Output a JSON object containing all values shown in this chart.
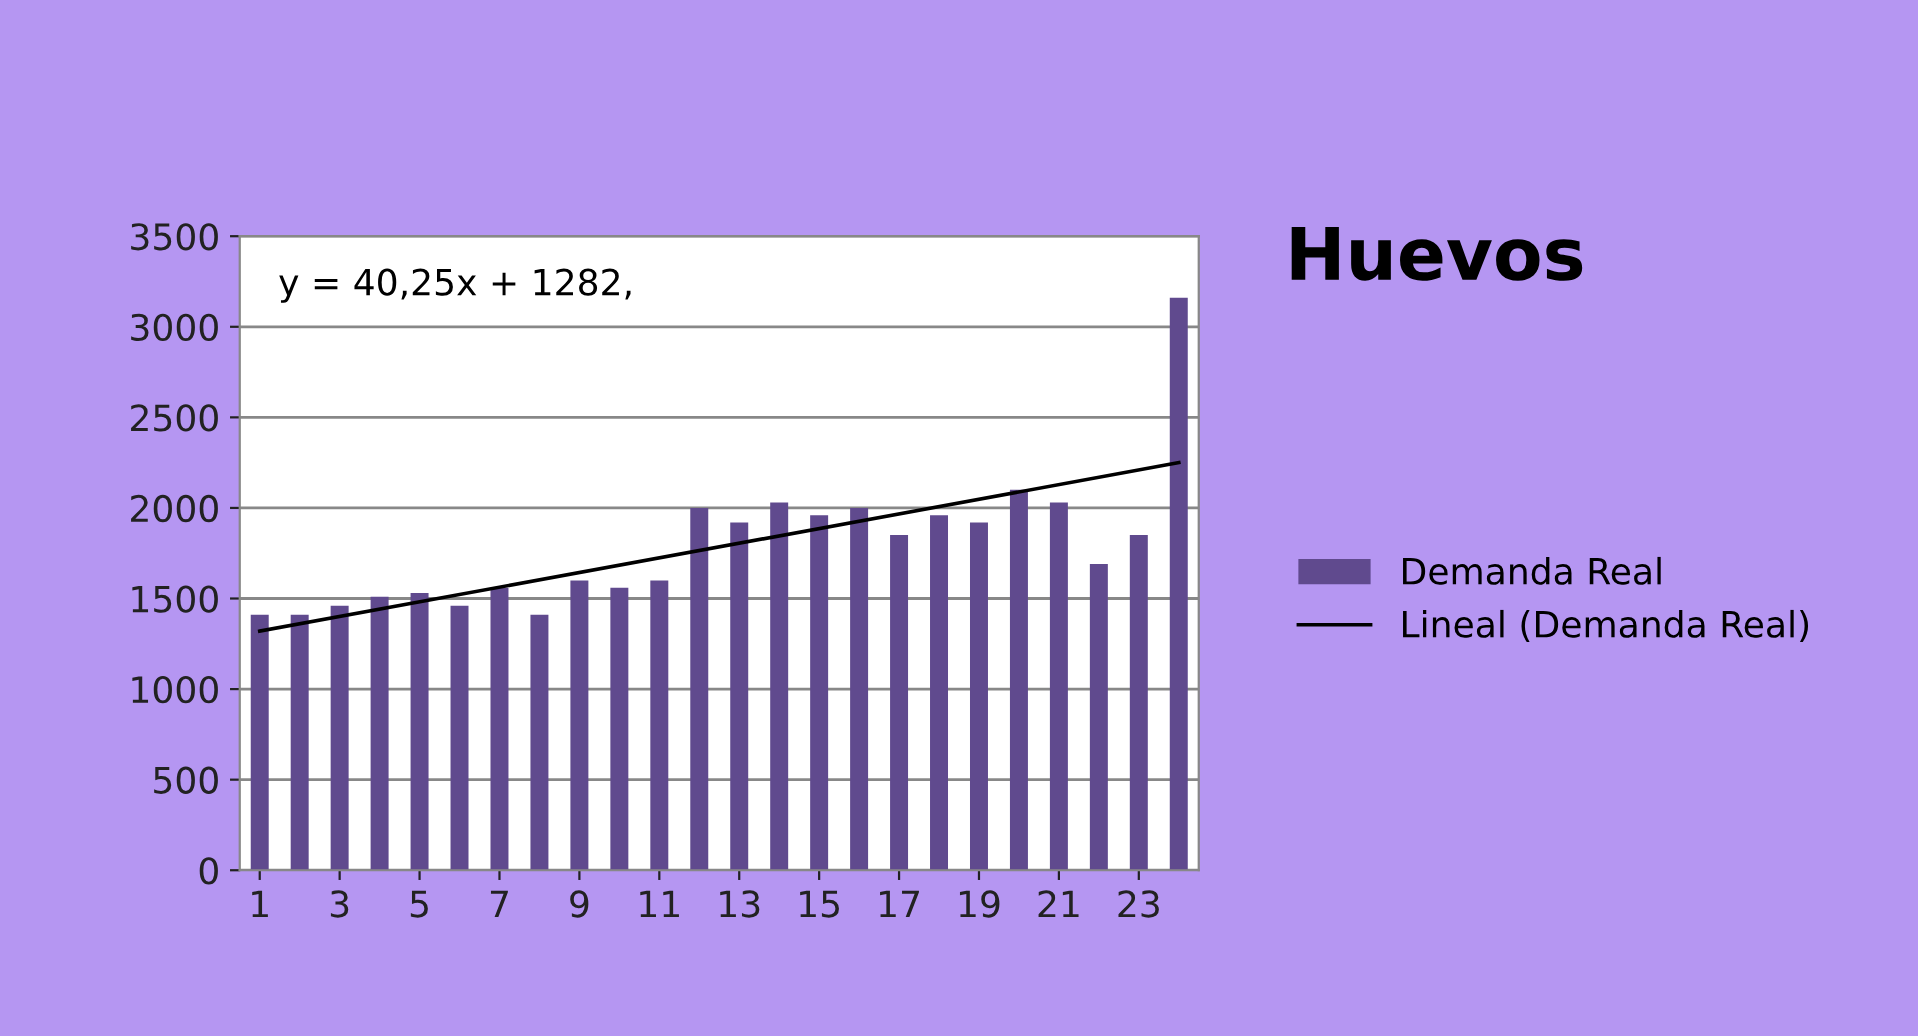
{
  "chart_data": {
    "type": "bar",
    "title": "Huevos",
    "x": [
      1,
      2,
      3,
      4,
      5,
      6,
      7,
      8,
      9,
      10,
      11,
      12,
      13,
      14,
      15,
      16,
      17,
      18,
      19,
      20,
      21,
      22,
      23,
      24
    ],
    "series": [
      {
        "name": "Demanda Real",
        "color": "#604a8e",
        "values": [
          1410,
          1410,
          1460,
          1510,
          1530,
          1460,
          1560,
          1410,
          1600,
          1560,
          1600,
          2000,
          1920,
          2030,
          1960,
          2000,
          1850,
          1960,
          1920,
          2100,
          2030,
          1690,
          1850,
          3160
        ]
      },
      {
        "name": "Lineal (Demanda Real)",
        "type": "line",
        "color": "#000000",
        "x": [
          1,
          24
        ],
        "values": [
          1320,
          2250
        ]
      }
    ],
    "xlim": [
      0.5,
      24.5
    ],
    "xticks": [
      1,
      3,
      5,
      7,
      9,
      11,
      13,
      15,
      17,
      19,
      21,
      23
    ],
    "ylim": [
      0,
      3500
    ],
    "yticks": [
      0,
      500,
      1000,
      1500,
      2000,
      2500,
      3000,
      3500
    ],
    "annotations": [
      "y = 40,25x + 1282,"
    ],
    "grid": "y",
    "legend": "right"
  }
}
